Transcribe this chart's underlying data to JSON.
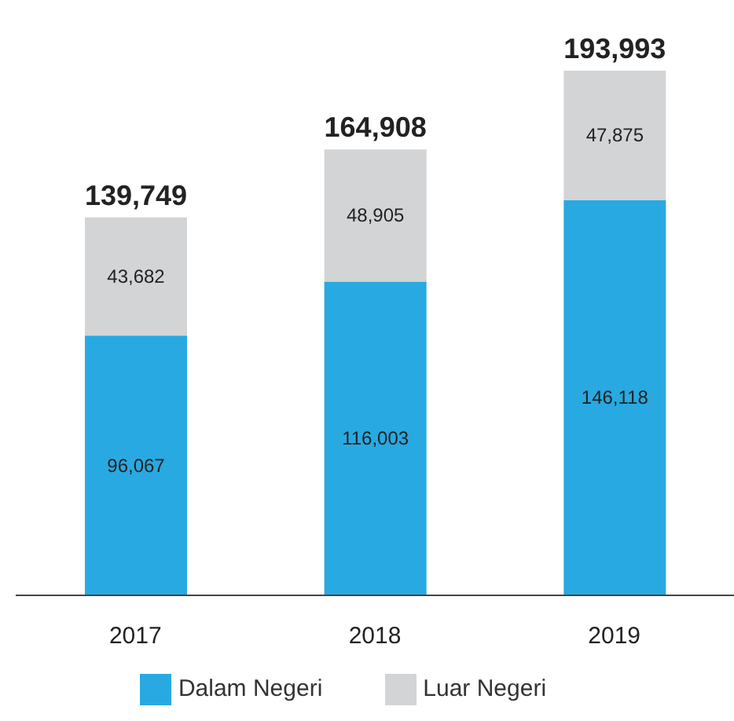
{
  "chart_data": {
    "type": "bar",
    "stacked": true,
    "categories": [
      "2017",
      "2018",
      "2019"
    ],
    "series": [
      {
        "name": "Dalam Negeri",
        "color": "#29a9e1",
        "values": [
          96067,
          116003,
          146118
        ],
        "value_labels": [
          "96,067",
          "116,003",
          "146,118"
        ]
      },
      {
        "name": "Luar Negeri",
        "color": "#d3d4d5",
        "values": [
          43682,
          48905,
          47875
        ],
        "value_labels": [
          "43,682",
          "48,905",
          "47,875"
        ]
      }
    ],
    "totals": [
      "139,749",
      "164,908",
      "193,993"
    ],
    "legend": "bottom",
    "grid": false
  }
}
